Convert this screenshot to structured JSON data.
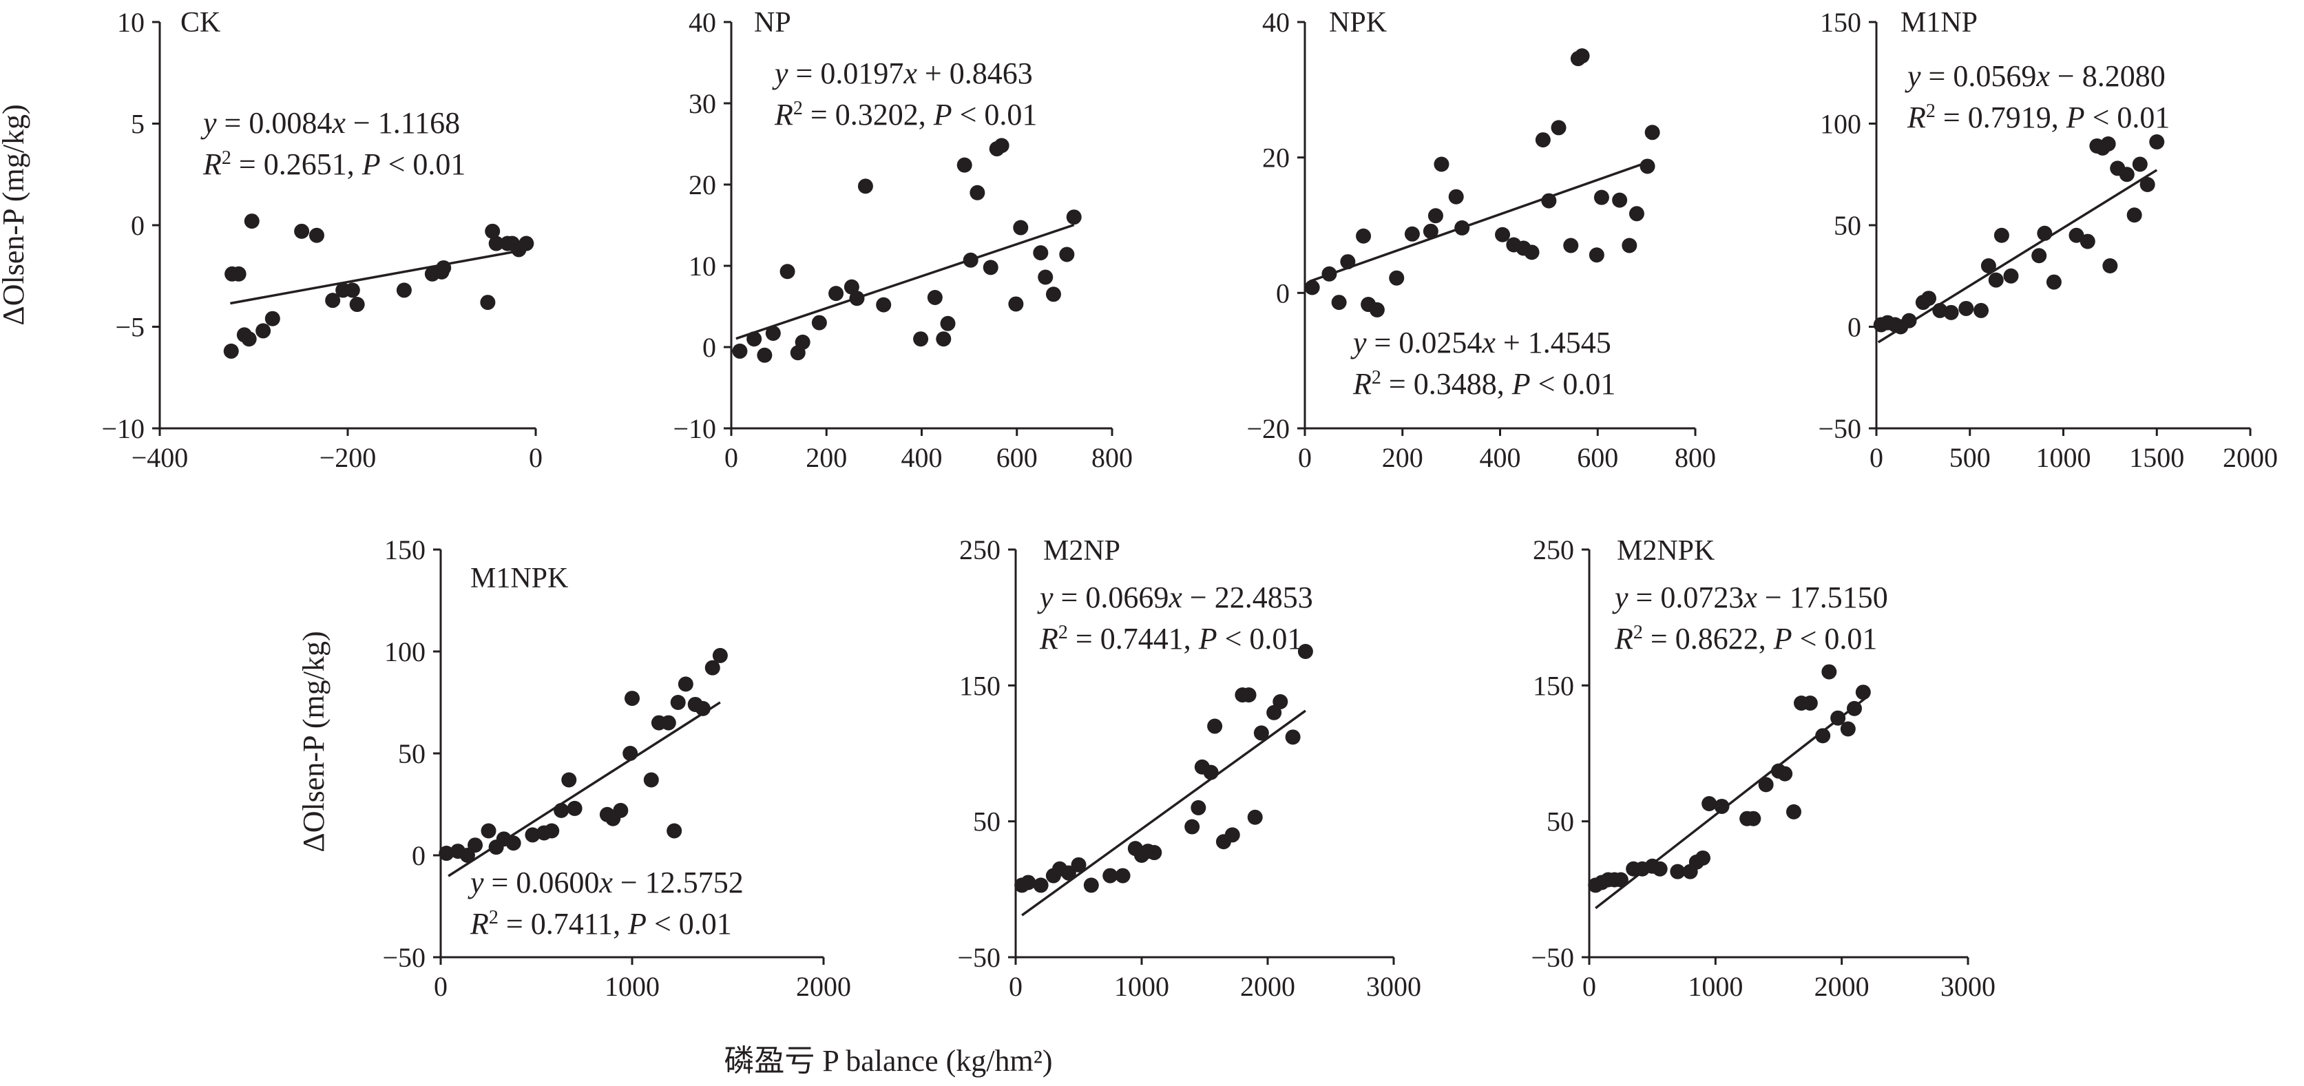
{
  "figure": {
    "y_axis_label": "ΔOlsen-P (mg/kg)",
    "x_axis_label": "磷盈亏 P balance (kg/hm²)"
  },
  "chart_data": [
    {
      "type": "scatter",
      "title": "CK",
      "xlim": [
        -400,
        0
      ],
      "ylim": [
        -10,
        10
      ],
      "xticks": [
        -400,
        -200,
        0
      ],
      "yticks": [
        -10,
        -5,
        0,
        5,
        10
      ],
      "eq1": "y = 0.0084x − 1.1168",
      "eq2": "R² = 0.2651, P < 0.01",
      "fit": {
        "slope": 0.0084,
        "intercept": -1.1168,
        "xmin": -325,
        "xmax": -10
      },
      "points": [
        [
          -324,
          -6.2
        ],
        [
          -323,
          -2.4
        ],
        [
          -316,
          -2.4
        ],
        [
          -310,
          -5.4
        ],
        [
          -305,
          -5.6
        ],
        [
          -302,
          0.2
        ],
        [
          -290,
          -5.2
        ],
        [
          -280,
          -4.6
        ],
        [
          -249,
          -0.3
        ],
        [
          -233,
          -0.5
        ],
        [
          -216,
          -3.7
        ],
        [
          -205,
          -3.2
        ],
        [
          -195,
          -3.2
        ],
        [
          -190,
          -3.9
        ],
        [
          -140,
          -3.2
        ],
        [
          -110,
          -2.4
        ],
        [
          -100,
          -2.3
        ],
        [
          -98,
          -2.1
        ],
        [
          -51,
          -3.8
        ],
        [
          -46,
          -0.3
        ],
        [
          -42,
          -0.9
        ],
        [
          -30,
          -0.9
        ],
        [
          -25,
          -0.9
        ],
        [
          -18,
          -1.2
        ],
        [
          -10,
          -0.9
        ]
      ]
    },
    {
      "type": "scatter",
      "title": "NP",
      "xlim": [
        0,
        800
      ],
      "ylim": [
        -10,
        40
      ],
      "xticks": [
        0,
        200,
        400,
        600,
        800
      ],
      "yticks": [
        -10,
        0,
        10,
        20,
        30,
        40
      ],
      "eq1": "y = 0.0197x + 0.8463",
      "eq2": "R² = 0.3202, P < 0.01",
      "fit": {
        "slope": 0.0197,
        "intercept": 0.8463,
        "xmin": 10,
        "xmax": 720
      },
      "points": [
        [
          18,
          -0.5
        ],
        [
          48,
          1
        ],
        [
          70,
          -1
        ],
        [
          88,
          1.7
        ],
        [
          118,
          9.3
        ],
        [
          140,
          -0.7
        ],
        [
          150,
          0.6
        ],
        [
          185,
          3
        ],
        [
          220,
          6.6
        ],
        [
          253,
          7.4
        ],
        [
          264,
          6
        ],
        [
          282,
          19.8
        ],
        [
          320,
          5.2
        ],
        [
          398,
          1
        ],
        [
          428,
          6.1
        ],
        [
          446,
          1
        ],
        [
          455,
          2.9
        ],
        [
          490,
          22.4
        ],
        [
          503,
          10.7
        ],
        [
          517,
          19
        ],
        [
          545,
          9.8
        ],
        [
          558,
          24.4
        ],
        [
          568,
          24.8
        ],
        [
          598,
          5.3
        ],
        [
          608,
          14.7
        ],
        [
          650,
          11.6
        ],
        [
          660,
          8.6
        ],
        [
          677,
          6.5
        ],
        [
          705,
          11.4
        ],
        [
          720,
          16
        ]
      ]
    },
    {
      "type": "scatter",
      "title": "NPK",
      "xlim": [
        0,
        800
      ],
      "ylim": [
        -20,
        40
      ],
      "xticks": [
        0,
        200,
        400,
        600,
        800
      ],
      "yticks": [
        -20,
        0,
        20,
        40
      ],
      "eq1": "y = 0.0254x + 1.4545",
      "eq2": "R² = 0.3488, P < 0.01",
      "fit": {
        "slope": 0.0254,
        "intercept": 1.4545,
        "xmin": 10,
        "xmax": 700
      },
      "points": [
        [
          15,
          0.8
        ],
        [
          50,
          2.8
        ],
        [
          70,
          -1.4
        ],
        [
          88,
          4.6
        ],
        [
          120,
          8.4
        ],
        [
          130,
          -1.7
        ],
        [
          148,
          -2.5
        ],
        [
          188,
          2.2
        ],
        [
          220,
          8.7
        ],
        [
          258,
          9.1
        ],
        [
          268,
          11.4
        ],
        [
          280,
          19
        ],
        [
          310,
          14.2
        ],
        [
          322,
          9.6
        ],
        [
          405,
          8.6
        ],
        [
          428,
          7.1
        ],
        [
          448,
          6.6
        ],
        [
          465,
          6
        ],
        [
          488,
          22.6
        ],
        [
          500,
          13.6
        ],
        [
          520,
          24.4
        ],
        [
          545,
          7
        ],
        [
          560,
          34.6
        ],
        [
          568,
          35
        ],
        [
          598,
          5.6
        ],
        [
          608,
          14.1
        ],
        [
          645,
          13.7
        ],
        [
          665,
          7
        ],
        [
          680,
          11.7
        ],
        [
          702,
          18.7
        ],
        [
          712,
          23.7
        ]
      ]
    },
    {
      "type": "scatter",
      "title": "M1NP",
      "xlim": [
        0,
        2000
      ],
      "ylim": [
        -50,
        150
      ],
      "xticks": [
        0,
        500,
        1000,
        1500,
        2000
      ],
      "yticks": [
        -50,
        0,
        50,
        100,
        150
      ],
      "eq1": "y = 0.0569x − 8.2080",
      "eq2": "R² = 0.7919, P < 0.01",
      "fit": {
        "slope": 0.0569,
        "intercept": -8.208,
        "xmin": 10,
        "xmax": 1500
      },
      "points": [
        [
          25,
          1
        ],
        [
          60,
          2
        ],
        [
          100,
          1
        ],
        [
          130,
          0
        ],
        [
          175,
          3
        ],
        [
          250,
          12
        ],
        [
          280,
          14
        ],
        [
          340,
          8
        ],
        [
          400,
          7
        ],
        [
          480,
          9
        ],
        [
          560,
          8
        ],
        [
          600,
          30
        ],
        [
          640,
          23
        ],
        [
          670,
          45
        ],
        [
          720,
          25
        ],
        [
          870,
          35
        ],
        [
          900,
          46
        ],
        [
          950,
          22
        ],
        [
          1070,
          45
        ],
        [
          1130,
          42
        ],
        [
          1180,
          89
        ],
        [
          1210,
          88
        ],
        [
          1240,
          90
        ],
        [
          1250,
          30
        ],
        [
          1290,
          78
        ],
        [
          1340,
          75
        ],
        [
          1380,
          55
        ],
        [
          1410,
          80
        ],
        [
          1450,
          70
        ],
        [
          1500,
          91
        ]
      ]
    },
    {
      "type": "scatter",
      "title": "M1NPK",
      "xlim": [
        0,
        2000
      ],
      "ylim": [
        -50,
        150
      ],
      "xticks": [
        0,
        1000,
        2000
      ],
      "yticks": [
        -50,
        0,
        50,
        100,
        150
      ],
      "eq1": "y = 0.0600x − 12.5752",
      "eq2": "R² = 0.7411, P < 0.01",
      "fit": {
        "slope": 0.06,
        "intercept": -12.5752,
        "xmin": 40,
        "xmax": 1460
      },
      "points": [
        [
          30,
          1
        ],
        [
          90,
          2
        ],
        [
          140,
          0
        ],
        [
          180,
          5
        ],
        [
          250,
          12
        ],
        [
          290,
          4
        ],
        [
          330,
          8
        ],
        [
          380,
          6
        ],
        [
          480,
          10
        ],
        [
          540,
          11
        ],
        [
          580,
          12
        ],
        [
          630,
          22
        ],
        [
          670,
          37
        ],
        [
          700,
          23
        ],
        [
          870,
          20
        ],
        [
          900,
          18
        ],
        [
          940,
          22
        ],
        [
          990,
          50
        ],
        [
          1000,
          77
        ],
        [
          1100,
          37
        ],
        [
          1140,
          65
        ],
        [
          1190,
          65
        ],
        [
          1220,
          12
        ],
        [
          1240,
          75
        ],
        [
          1280,
          84
        ],
        [
          1330,
          74
        ],
        [
          1370,
          72
        ],
        [
          1420,
          92
        ],
        [
          1460,
          98
        ]
      ]
    },
    {
      "type": "scatter",
      "title": "M2NP",
      "xlim": [
        0,
        3000
      ],
      "ylim": [
        -50,
        250
      ],
      "xticks": [
        0,
        1000,
        2000,
        3000
      ],
      "yticks": [
        -50,
        50,
        150,
        250
      ],
      "eq1": "y = 0.0669x − 22.4853",
      "eq2": "R² = 0.7441, P < 0.01",
      "fit": {
        "slope": 0.0669,
        "intercept": -22.4853,
        "xmin": 50,
        "xmax": 2300
      },
      "points": [
        [
          50,
          3
        ],
        [
          100,
          5
        ],
        [
          200,
          3
        ],
        [
          300,
          10
        ],
        [
          350,
          15
        ],
        [
          420,
          12
        ],
        [
          500,
          18
        ],
        [
          600,
          3
        ],
        [
          750,
          10
        ],
        [
          850,
          10
        ],
        [
          950,
          30
        ],
        [
          1000,
          25
        ],
        [
          1050,
          28
        ],
        [
          1100,
          27
        ],
        [
          1400,
          46
        ],
        [
          1450,
          60
        ],
        [
          1480,
          90
        ],
        [
          1550,
          86
        ],
        [
          1580,
          120
        ],
        [
          1650,
          35
        ],
        [
          1720,
          40
        ],
        [
          1800,
          143
        ],
        [
          1850,
          143
        ],
        [
          1900,
          53
        ],
        [
          1950,
          115
        ],
        [
          2050,
          130
        ],
        [
          2100,
          138
        ],
        [
          2200,
          112
        ],
        [
          2300,
          175
        ]
      ]
    },
    {
      "type": "scatter",
      "title": "M2NPK",
      "xlim": [
        0,
        3000
      ],
      "ylim": [
        -50,
        250
      ],
      "xticks": [
        0,
        1000,
        2000,
        3000
      ],
      "yticks": [
        -50,
        50,
        150,
        250
      ],
      "eq1": "y = 0.0723x − 17.5150",
      "eq2": "R² = 0.8622, P < 0.01",
      "fit": {
        "slope": 0.0723,
        "intercept": -17.515,
        "xmin": 50,
        "xmax": 2200
      },
      "points": [
        [
          50,
          3
        ],
        [
          100,
          5
        ],
        [
          150,
          7
        ],
        [
          200,
          7
        ],
        [
          250,
          7
        ],
        [
          350,
          15
        ],
        [
          420,
          15
        ],
        [
          500,
          17
        ],
        [
          560,
          15
        ],
        [
          700,
          13
        ],
        [
          800,
          13
        ],
        [
          850,
          20
        ],
        [
          900,
          23
        ],
        [
          950,
          63
        ],
        [
          1050,
          61
        ],
        [
          1250,
          52
        ],
        [
          1300,
          52
        ],
        [
          1400,
          77
        ],
        [
          1500,
          87
        ],
        [
          1550,
          85
        ],
        [
          1620,
          57
        ],
        [
          1680,
          137
        ],
        [
          1750,
          137
        ],
        [
          1850,
          113
        ],
        [
          1900,
          160
        ],
        [
          1970,
          126
        ],
        [
          2050,
          118
        ],
        [
          2100,
          133
        ],
        [
          2170,
          145
        ]
      ]
    }
  ]
}
